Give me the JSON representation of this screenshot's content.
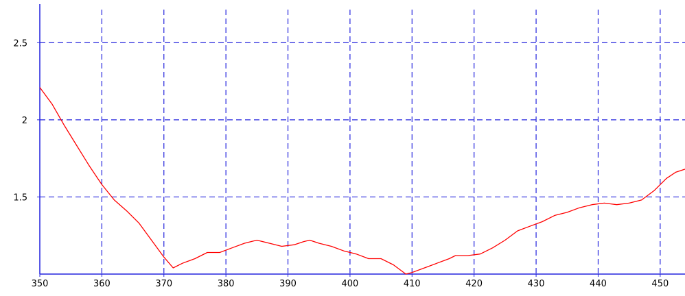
{
  "chart_data": {
    "type": "line",
    "title": "",
    "xlabel": "",
    "ylabel": "",
    "xlim": [
      350,
      454
    ],
    "ylim": [
      1.0,
      2.75
    ],
    "grid": true,
    "xticks": [
      350,
      360,
      370,
      380,
      390,
      400,
      410,
      420,
      430,
      440,
      450
    ],
    "xtick_labels": [
      "350",
      "360",
      "370",
      "380",
      "390",
      "400",
      "410",
      "420",
      "430",
      "440",
      "450"
    ],
    "yticks": [
      1.5,
      2,
      2.5
    ],
    "ytick_labels": [
      "1.5",
      "2",
      "2.5"
    ],
    "series": [
      {
        "color": "#ff0000",
        "x": [
          350,
          352,
          354,
          356,
          358,
          360,
          362,
          364,
          366,
          368,
          370,
          371.5,
          373,
          375,
          377,
          379,
          381,
          383,
          385,
          387,
          389,
          391,
          392.5,
          393.5,
          395,
          397,
          399,
          401,
          403,
          405,
          407,
          409,
          410,
          412,
          414,
          416,
          417,
          419,
          421,
          423,
          425,
          427,
          429,
          431,
          433,
          435,
          437,
          439,
          441,
          443,
          445,
          447,
          449,
          451,
          452.5,
          454
        ],
        "y": [
          2.21,
          2.1,
          1.96,
          1.83,
          1.7,
          1.58,
          1.48,
          1.41,
          1.33,
          1.22,
          1.11,
          1.04,
          1.07,
          1.1,
          1.14,
          1.14,
          1.17,
          1.2,
          1.22,
          1.2,
          1.18,
          1.19,
          1.21,
          1.22,
          1.2,
          1.18,
          1.15,
          1.13,
          1.1,
          1.1,
          1.06,
          1.0,
          1.01,
          1.04,
          1.07,
          1.1,
          1.12,
          1.12,
          1.13,
          1.17,
          1.22,
          1.28,
          1.31,
          1.34,
          1.38,
          1.4,
          1.43,
          1.45,
          1.46,
          1.45,
          1.46,
          1.48,
          1.54,
          1.62,
          1.66,
          1.68
        ]
      }
    ]
  }
}
